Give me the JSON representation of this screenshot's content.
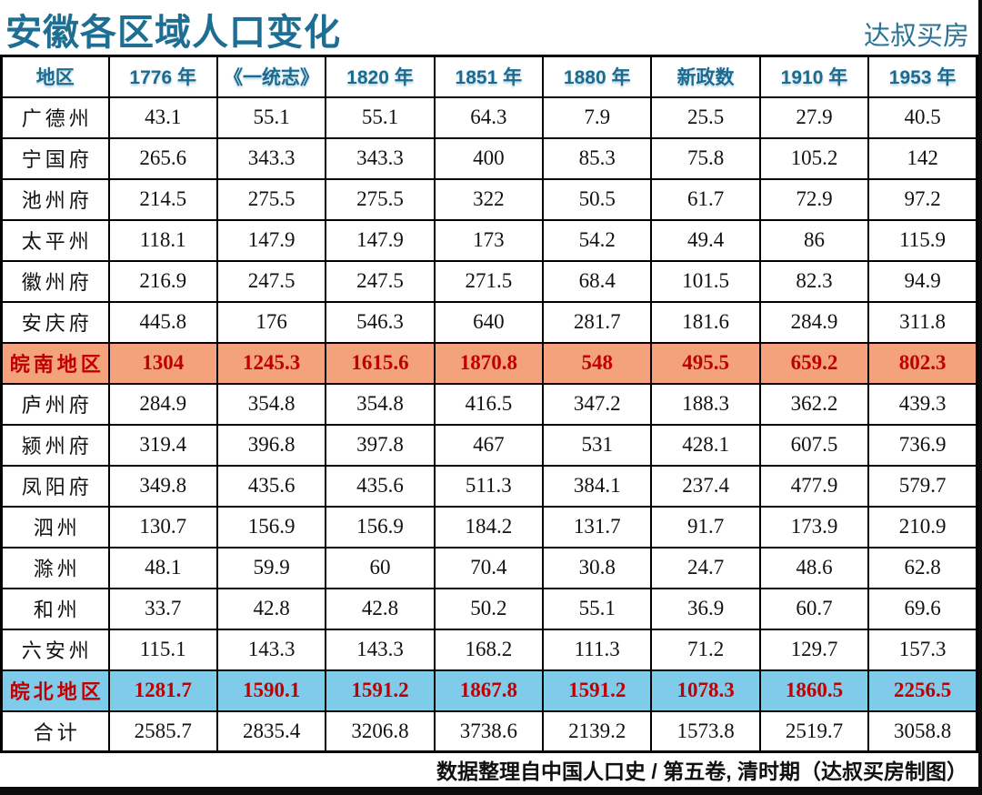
{
  "page": {
    "title": "安徽各区域人口变化",
    "brand": "达叔买房",
    "footer_note": "数据整理自中国人口史 / 第五卷, 清时期（达叔买房制图）"
  },
  "colors": {
    "title_teal": "#1E6E93",
    "header_teal": "#1C6A90",
    "south_row_bg": "#F4A27B",
    "north_row_bg": "#7FCBEA",
    "highlight_text_red": "#C00000"
  },
  "chart_data": {
    "type": "table",
    "title": "安徽各区域人口变化",
    "columns": [
      "地区",
      "1776 年",
      "《一统志》",
      "1820 年",
      "1851 年",
      "1880 年",
      "新政数",
      "1910 年",
      "1953 年"
    ],
    "rows": [
      {
        "region": "广德州",
        "type": "normal",
        "values": [
          "43.1",
          "55.1",
          "55.1",
          "64.3",
          "7.9",
          "25.5",
          "27.9",
          "40.5"
        ]
      },
      {
        "region": "宁国府",
        "type": "normal",
        "values": [
          "265.6",
          "343.3",
          "343.3",
          "400",
          "85.3",
          "75.8",
          "105.2",
          "142"
        ]
      },
      {
        "region": "池州府",
        "type": "normal",
        "values": [
          "214.5",
          "275.5",
          "275.5",
          "322",
          "50.5",
          "61.7",
          "72.9",
          "97.2"
        ]
      },
      {
        "region": "太平州",
        "type": "normal",
        "values": [
          "118.1",
          "147.9",
          "147.9",
          "173",
          "54.2",
          "49.4",
          "86",
          "115.9"
        ]
      },
      {
        "region": "徽州府",
        "type": "normal",
        "values": [
          "216.9",
          "247.5",
          "247.5",
          "271.5",
          "68.4",
          "101.5",
          "82.3",
          "94.9"
        ]
      },
      {
        "region": "安庆府",
        "type": "normal",
        "values": [
          "445.8",
          "176",
          "546.3",
          "640",
          "281.7",
          "181.6",
          "284.9",
          "311.8"
        ]
      },
      {
        "region": "皖南地区",
        "type": "south",
        "values": [
          "1304",
          "1245.3",
          "1615.6",
          "1870.8",
          "548",
          "495.5",
          "659.2",
          "802.3"
        ]
      },
      {
        "region": "庐州府",
        "type": "normal",
        "values": [
          "284.9",
          "354.8",
          "354.8",
          "416.5",
          "347.2",
          "188.3",
          "362.2",
          "439.3"
        ]
      },
      {
        "region": "颍州府",
        "type": "normal",
        "values": [
          "319.4",
          "396.8",
          "397.8",
          "467",
          "531",
          "428.1",
          "607.5",
          "736.9"
        ]
      },
      {
        "region": "凤阳府",
        "type": "normal",
        "values": [
          "349.8",
          "435.6",
          "435.6",
          "511.3",
          "384.1",
          "237.4",
          "477.9",
          "579.7"
        ]
      },
      {
        "region": "泗州",
        "type": "normal",
        "values": [
          "130.7",
          "156.9",
          "156.9",
          "184.2",
          "131.7",
          "91.7",
          "173.9",
          "210.9"
        ]
      },
      {
        "region": "滁州",
        "type": "normal",
        "values": [
          "48.1",
          "59.9",
          "60",
          "70.4",
          "30.8",
          "24.7",
          "48.6",
          "62.8"
        ]
      },
      {
        "region": "和州",
        "type": "normal",
        "values": [
          "33.7",
          "42.8",
          "42.8",
          "50.2",
          "55.1",
          "36.9",
          "60.7",
          "69.6"
        ]
      },
      {
        "region": "六安州",
        "type": "normal",
        "values": [
          "115.1",
          "143.3",
          "143.3",
          "168.2",
          "111.3",
          "71.2",
          "129.7",
          "157.3"
        ]
      },
      {
        "region": "皖北地区",
        "type": "north",
        "values": [
          "1281.7",
          "1590.1",
          "1591.2",
          "1867.8",
          "1591.2",
          "1078.3",
          "1860.5",
          "2256.5"
        ]
      },
      {
        "region": "合计",
        "type": "grand",
        "values": [
          "2585.7",
          "2835.4",
          "3206.8",
          "3738.6",
          "2139.2",
          "1573.8",
          "2519.7",
          "3058.8"
        ]
      }
    ]
  }
}
